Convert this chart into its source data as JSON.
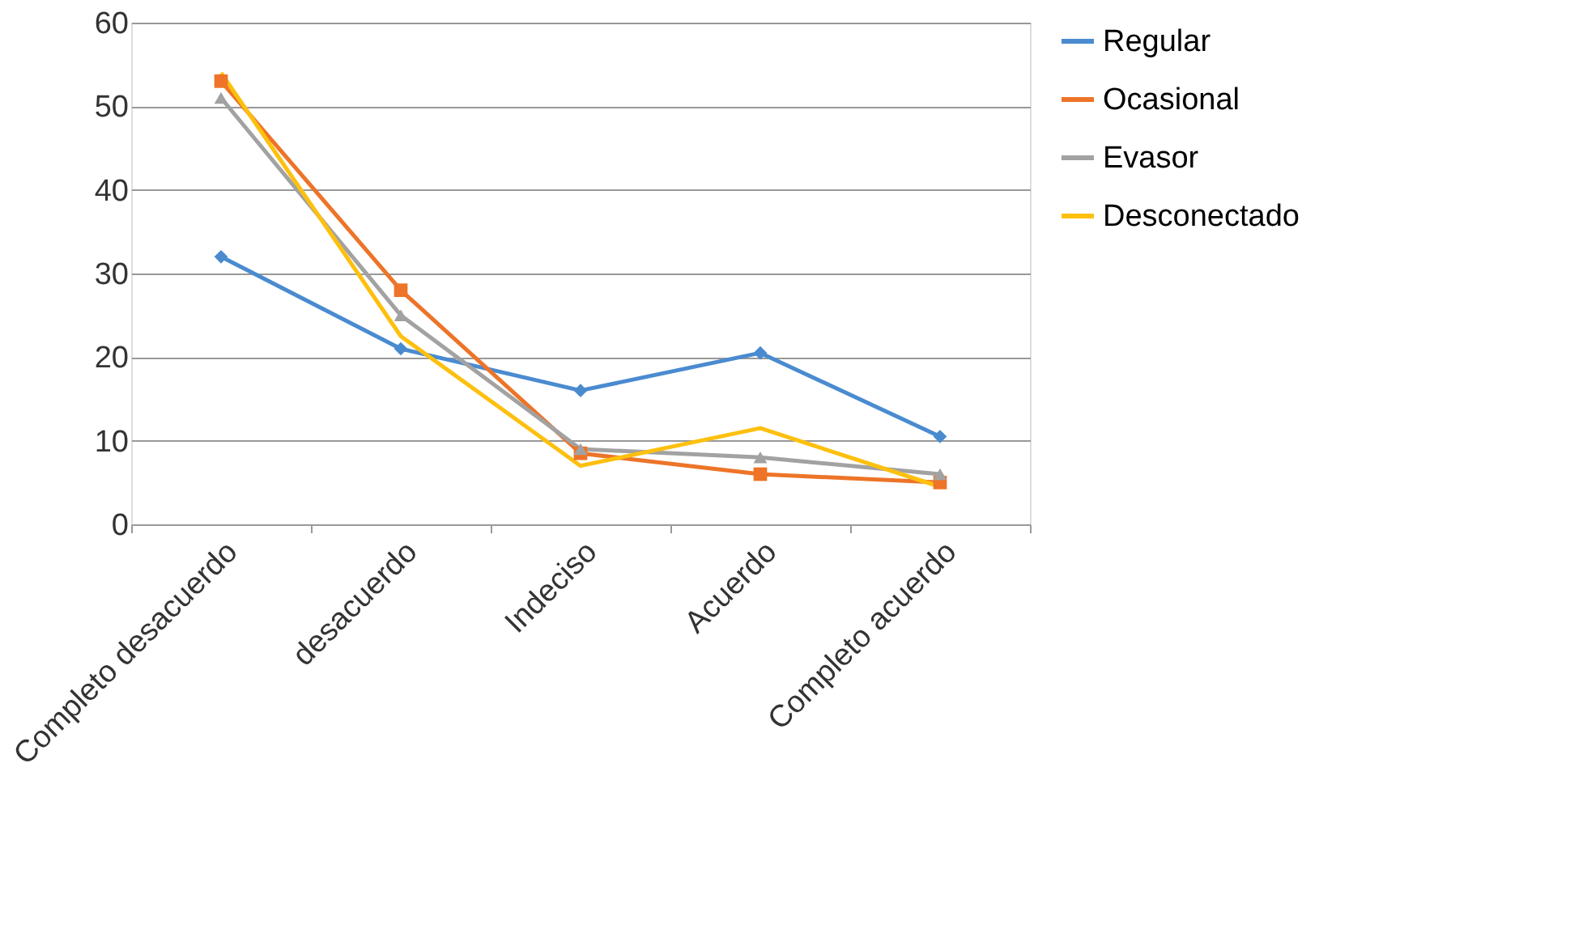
{
  "chart_data": {
    "type": "line",
    "categories": [
      "Completo desacuerdo",
      "desacuerdo",
      "Indeciso",
      "Acuerdo",
      "Completo acuerdo"
    ],
    "series": [
      {
        "name": "Regular",
        "color": "#4a8bd0",
        "marker": "diamond",
        "values": [
          32,
          21,
          16,
          20.5,
          10.5
        ]
      },
      {
        "name": "Ocasional",
        "color": "#ed7428",
        "marker": "square",
        "values": [
          53,
          28,
          8.5,
          6,
          5
        ]
      },
      {
        "name": "Evasor",
        "color": "#a2a2a2",
        "marker": "triangle",
        "values": [
          51,
          25,
          9,
          8,
          6
        ]
      },
      {
        "name": "Desconectado",
        "color": "#fdc00f",
        "marker": "none",
        "values": [
          54,
          22.5,
          7,
          11.5,
          4.5
        ]
      }
    ],
    "ylim": [
      0,
      60
    ],
    "yticks": [
      0,
      10,
      20,
      30,
      40,
      50,
      60
    ],
    "grid": "y",
    "legend": "right"
  }
}
